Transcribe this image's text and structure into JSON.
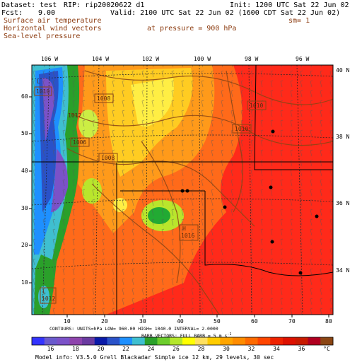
{
  "header": {
    "dataset": "Dataset: test",
    "rip": "RIP: rip20020622 d1",
    "init": "Init: 1200 UTC Sat 22 Jun 02",
    "fcst": "Fcst:",
    "fcst_value": "9.00",
    "valid": "Valid: 2100 UTC Sat 22 Jun 02 (1600 CDT Sat 22 Jun 02)",
    "line1": "Surface air temperature",
    "line2": "Horizontal wind vectors",
    "line3": "Sea-level pressure",
    "sm": "sm= 1",
    "pressure": "at pressure =  900 hPa"
  },
  "map": {
    "lon_labels": [
      "106 W",
      "104 W",
      "102 W",
      "100 W",
      "98 W",
      "96 W"
    ],
    "lat_labels": [
      "40 N",
      "38 N",
      "36 N",
      "34 N"
    ],
    "x_ticks": [
      "10",
      "20",
      "30",
      "40",
      "50",
      "60",
      "70",
      "80"
    ],
    "y_ticks": [
      "10",
      "20",
      "30",
      "40",
      "50",
      "60"
    ],
    "isobar_labels": [
      "1008",
      "1006",
      "1008",
      "1010",
      "1010",
      "1010",
      "1012",
      "1012"
    ],
    "high_marker": {
      "symbol": "H",
      "value": "1016"
    },
    "low_markers": [
      "L",
      "L"
    ]
  },
  "footer": {
    "contours": "CONTOURS:  UNITS=hPa  LOW= 960.00      HIGH= 1040.0      INTERVAL=   2.0000",
    "barbs": "BARB VECTORS:  FULL BARB = 5 m s",
    "superscript": "-1",
    "model_info": "Model info: V3.5.0   Grell      Blackadar  Simple ice    12 km,  29 levels,   30 sec"
  },
  "colorbar": {
    "labels": [
      "16",
      "18",
      "20",
      "22",
      "24",
      "26",
      "28",
      "30",
      "32",
      "34",
      "36",
      "°C"
    ],
    "colors": [
      "#3333ff",
      "#6a5acd",
      "#7b52c8",
      "#8e44ad",
      "#6a3aa0",
      "#0a1aa8",
      "#2a52c8",
      "#1e90ff",
      "#3fbfd0",
      "#2aa02a",
      "#6ccd2c",
      "#b4e62c",
      "#ffff00",
      "#ffe060",
      "#ffcc00",
      "#ffa500",
      "#ff8c00",
      "#ff6a00",
      "#ff4500",
      "#ee2200",
      "#dd1100",
      "#c81a00",
      "#b00020",
      "#8b4513"
    ]
  }
}
